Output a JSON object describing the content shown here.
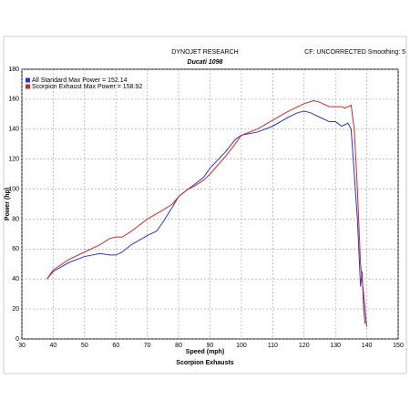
{
  "chart_data": {
    "type": "line",
    "title": "DYNOJET RESEARCH",
    "subtitle": "Ducati 1098",
    "note": "CF: UNCORRECTED  Smoothing: 5",
    "x_label": "Speed (mph)",
    "y_label": "Power (hp)",
    "footer": "Scorpion Exhausts",
    "xlim": [
      30,
      150
    ],
    "ylim": [
      0,
      180
    ],
    "xticks": [
      30,
      40,
      50,
      60,
      70,
      80,
      90,
      100,
      110,
      120,
      130,
      140,
      150
    ],
    "yticks": [
      0,
      20,
      40,
      60,
      80,
      100,
      120,
      140,
      160,
      180
    ],
    "grid": true,
    "series": [
      {
        "name": "All Standard Max Power = 152.14",
        "color": "#2a35c8",
        "x": [
          38,
          40,
          45,
          50,
          55,
          58,
          60,
          62,
          65,
          70,
          73,
          75,
          78,
          80,
          83,
          85,
          88,
          90,
          95,
          98,
          100,
          105,
          110,
          115,
          118,
          120,
          122,
          125,
          128,
          130,
          132,
          134,
          135,
          136,
          137,
          138,
          138.5,
          139,
          139.5
        ],
        "values": [
          40,
          45,
          51,
          55,
          57,
          56,
          56,
          58,
          63,
          69,
          72,
          78,
          88,
          95,
          100,
          103,
          108,
          114,
          125,
          133,
          136,
          138,
          142,
          148,
          151,
          152,
          151,
          148,
          145,
          145,
          142,
          144,
          140,
          110,
          80,
          35,
          45,
          20,
          10
        ]
      },
      {
        "name": "Scorpion Exhaust Max Power = 158.92",
        "color": "#cc2a2a",
        "x": [
          38,
          40,
          45,
          50,
          55,
          58,
          60,
          62,
          65,
          70,
          75,
          78,
          80,
          83,
          85,
          88,
          90,
          95,
          98,
          100,
          105,
          110,
          115,
          120,
          123,
          125,
          128,
          130,
          132,
          133,
          135,
          136,
          137,
          138,
          138.5,
          139,
          140
        ],
        "values": [
          40,
          46,
          53,
          58,
          63,
          67,
          68,
          68,
          72,
          80,
          86,
          90,
          95,
          100,
          102,
          106,
          110,
          122,
          130,
          136,
          140,
          146,
          152,
          157,
          159,
          158,
          155,
          155,
          155,
          154,
          156,
          140,
          100,
          50,
          40,
          30,
          8
        ]
      }
    ]
  }
}
